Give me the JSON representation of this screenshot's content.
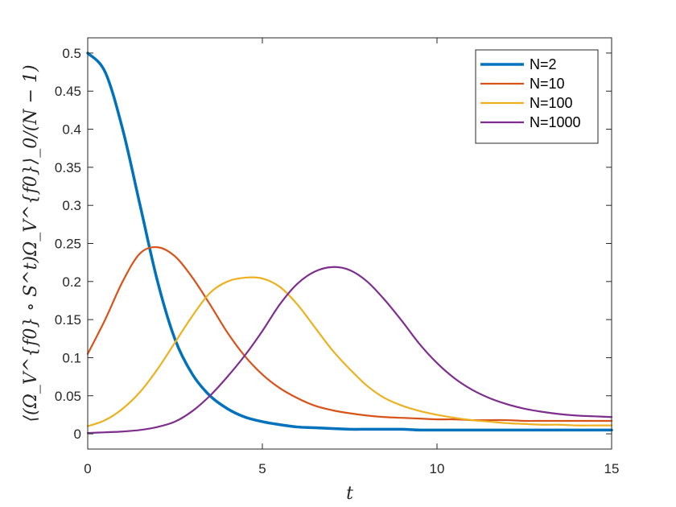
{
  "chart_data": {
    "type": "line",
    "title": "",
    "xlabel": "t",
    "ylabel": "⟨(Ω_V^{f0} ∘ S^t)Ω_V^{f0}⟩_0/(N − 1)",
    "xlim": [
      0,
      15
    ],
    "ylim": [
      -0.02,
      0.52
    ],
    "xticks": [
      0,
      5,
      10,
      15
    ],
    "xtick_labels": [
      "0",
      "5",
      "10",
      "15"
    ],
    "yticks": [
      0,
      0.05,
      0.1,
      0.15,
      0.2,
      0.25,
      0.3,
      0.35,
      0.4,
      0.45,
      0.5
    ],
    "ytick_labels": [
      "0",
      "0.05",
      "0.1",
      "0.15",
      "0.2",
      "0.25",
      "0.3",
      "0.35",
      "0.4",
      "0.45",
      "0.5"
    ],
    "grid": false,
    "legend_position": "top-right",
    "x": [
      0,
      0.5,
      1,
      1.5,
      2,
      2.5,
      3,
      3.5,
      4,
      4.5,
      5,
      5.5,
      6,
      6.5,
      7,
      7.5,
      8,
      8.5,
      9,
      9.5,
      10,
      10.5,
      11,
      11.5,
      12,
      12.5,
      13,
      13.5,
      14,
      14.5,
      15
    ],
    "series": [
      {
        "name": "N=2",
        "color": "#0072BD",
        "width": 3.5,
        "values": [
          0.5,
          0.475,
          0.4,
          0.3,
          0.2,
          0.124,
          0.078,
          0.05,
          0.033,
          0.022,
          0.016,
          0.012,
          0.009,
          0.008,
          0.007,
          0.006,
          0.006,
          0.006,
          0.006,
          0.005,
          0.005,
          0.005,
          0.005,
          0.005,
          0.005,
          0.005,
          0.005,
          0.005,
          0.005,
          0.005,
          0.005
        ]
      },
      {
        "name": "N=10",
        "color": "#D95319",
        "width": 2.2,
        "values": [
          0.105,
          0.15,
          0.2,
          0.237,
          0.245,
          0.233,
          0.205,
          0.17,
          0.133,
          0.102,
          0.078,
          0.06,
          0.047,
          0.037,
          0.031,
          0.027,
          0.024,
          0.022,
          0.021,
          0.02,
          0.019,
          0.019,
          0.018,
          0.018,
          0.018,
          0.017,
          0.017,
          0.017,
          0.017,
          0.017,
          0.017
        ]
      },
      {
        "name": "N=100",
        "color": "#EDB120",
        "width": 2.2,
        "values": [
          0.01,
          0.018,
          0.033,
          0.055,
          0.085,
          0.12,
          0.155,
          0.185,
          0.2,
          0.205,
          0.204,
          0.193,
          0.17,
          0.14,
          0.11,
          0.085,
          0.063,
          0.047,
          0.037,
          0.03,
          0.025,
          0.021,
          0.018,
          0.016,
          0.014,
          0.013,
          0.012,
          0.012,
          0.011,
          0.011,
          0.011
        ]
      },
      {
        "name": "N=1000",
        "color": "#7E2F8E",
        "width": 2.2,
        "values": [
          0.001,
          0.002,
          0.003,
          0.005,
          0.009,
          0.016,
          0.03,
          0.05,
          0.075,
          0.103,
          0.135,
          0.17,
          0.197,
          0.213,
          0.219,
          0.215,
          0.2,
          0.176,
          0.148,
          0.118,
          0.093,
          0.073,
          0.058,
          0.047,
          0.039,
          0.033,
          0.029,
          0.026,
          0.024,
          0.023,
          0.022
        ]
      }
    ]
  }
}
